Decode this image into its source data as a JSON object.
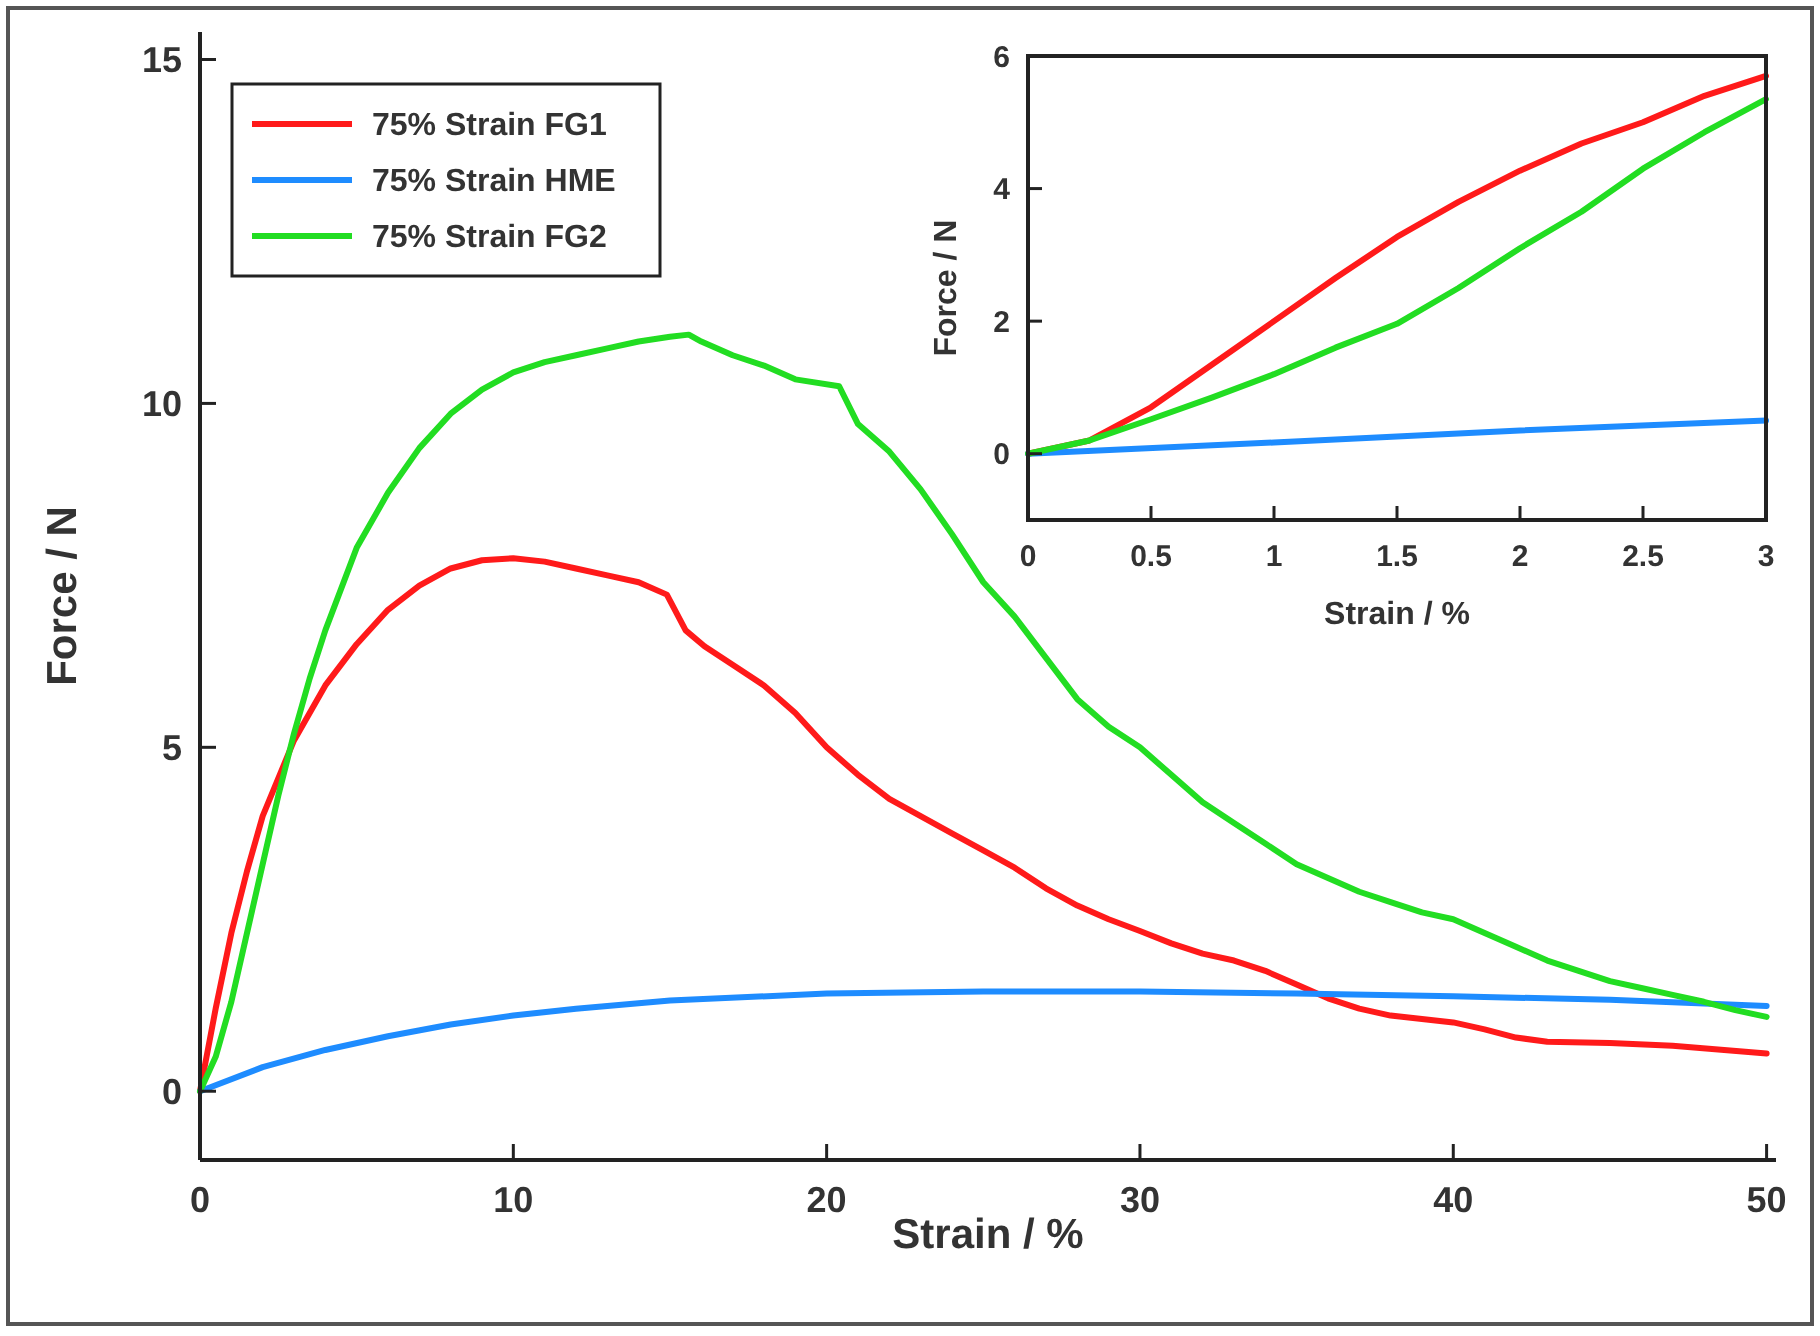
{
  "chart_data": [
    {
      "type": "line",
      "xlabel": "Strain / %",
      "ylabel": "Force / N",
      "xlim": [
        0,
        50.3
      ],
      "ylim": [
        -1,
        15.4
      ],
      "xticks": [
        0,
        10,
        20,
        30,
        40,
        50
      ],
      "yticks": [
        0,
        5,
        10,
        15
      ],
      "grid": false,
      "legend": "top left",
      "line_style": "solid",
      "marker": "none",
      "series": [
        {
          "name": "75% Strain FG1",
          "color": "#ff1a1a",
          "x": [
            0,
            0.5,
            1,
            1.5,
            2,
            3,
            4,
            5,
            6,
            7,
            8,
            9,
            10,
            11,
            12,
            13,
            14,
            14.9,
            15.5,
            16.1,
            17,
            18,
            19,
            20,
            21,
            22,
            23,
            24,
            25,
            26,
            27,
            28,
            29,
            30,
            31,
            32,
            33,
            34,
            35,
            36,
            37,
            38,
            39,
            40,
            41,
            42,
            43,
            45,
            47,
            50
          ],
          "values": [
            0,
            1.2,
            2.3,
            3.2,
            4.0,
            5.1,
            5.9,
            6.5,
            7.0,
            7.35,
            7.6,
            7.72,
            7.75,
            7.7,
            7.6,
            7.5,
            7.4,
            7.22,
            6.7,
            6.47,
            6.2,
            5.9,
            5.5,
            5.0,
            4.6,
            4.25,
            4.0,
            3.75,
            3.5,
            3.25,
            2.95,
            2.7,
            2.5,
            2.33,
            2.15,
            2.0,
            1.9,
            1.75,
            1.55,
            1.35,
            1.2,
            1.1,
            1.05,
            1.0,
            0.9,
            0.78,
            0.72,
            0.7,
            0.66,
            0.55
          ]
        },
        {
          "name": "75% Strain HME",
          "color": "#1e8cff",
          "x": [
            0,
            2,
            4,
            6,
            8,
            10,
            12,
            15,
            20,
            25,
            30,
            35,
            40,
            45,
            50
          ],
          "values": [
            0,
            0.35,
            0.6,
            0.8,
            0.97,
            1.1,
            1.2,
            1.32,
            1.42,
            1.45,
            1.45,
            1.42,
            1.38,
            1.33,
            1.24
          ]
        },
        {
          "name": "75% Strain FG2",
          "color": "#22dd22",
          "x": [
            0,
            0.5,
            1,
            1.5,
            2,
            2.5,
            3,
            3.5,
            4,
            5,
            6,
            7,
            8,
            9,
            10,
            11,
            12,
            13,
            14,
            15,
            15.6,
            16,
            17,
            18,
            19,
            20.4,
            21,
            22,
            23,
            24,
            25,
            26,
            27,
            28,
            29,
            30,
            31,
            32,
            33,
            34,
            35,
            36,
            37,
            38,
            39,
            40,
            41,
            42,
            43,
            44,
            45,
            46,
            47,
            48,
            49,
            50
          ],
          "values": [
            0,
            0.5,
            1.3,
            2.3,
            3.3,
            4.3,
            5.2,
            6.0,
            6.7,
            7.9,
            8.7,
            9.35,
            9.85,
            10.2,
            10.45,
            10.6,
            10.7,
            10.8,
            10.9,
            10.97,
            11.0,
            10.9,
            10.7,
            10.55,
            10.35,
            10.25,
            9.7,
            9.3,
            8.75,
            8.1,
            7.4,
            6.9,
            6.3,
            5.7,
            5.3,
            5.0,
            4.6,
            4.2,
            3.9,
            3.6,
            3.3,
            3.1,
            2.9,
            2.75,
            2.6,
            2.5,
            2.3,
            2.1,
            1.9,
            1.75,
            1.6,
            1.5,
            1.4,
            1.3,
            1.18,
            1.08
          ]
        }
      ]
    },
    {
      "type": "line",
      "xlabel": "Strain / %",
      "ylabel": "Force / N",
      "xlim": [
        0,
        3
      ],
      "ylim": [
        -1,
        6
      ],
      "xticks": [
        0,
        0.5,
        1,
        1.5,
        2,
        2.5,
        3
      ],
      "yticks": [
        0,
        2,
        4,
        6
      ],
      "grid": false,
      "legend": false,
      "line_style": "solid",
      "marker": "none",
      "series": [
        {
          "color": "#ff1a1a",
          "x": [
            0,
            0.25,
            0.5,
            0.75,
            1,
            1.25,
            1.5,
            1.75,
            2,
            2.25,
            2.5,
            2.75,
            3
          ],
          "values": [
            0,
            0.2,
            0.7,
            1.35,
            2.0,
            2.65,
            3.27,
            3.8,
            4.27,
            4.68,
            5.0,
            5.4,
            5.7
          ]
        },
        {
          "color": "#1e8cff",
          "x": [
            0,
            1,
            2,
            3
          ],
          "values": [
            0,
            0.17,
            0.35,
            0.5
          ]
        },
        {
          "color": "#22dd22",
          "x": [
            0,
            0.25,
            0.5,
            0.75,
            1,
            1.25,
            1.5,
            1.75,
            2,
            2.25,
            2.5,
            2.75,
            3
          ],
          "values": [
            0,
            0.2,
            0.52,
            0.85,
            1.2,
            1.6,
            1.96,
            2.5,
            3.1,
            3.65,
            4.3,
            4.85,
            5.35
          ]
        }
      ]
    }
  ]
}
